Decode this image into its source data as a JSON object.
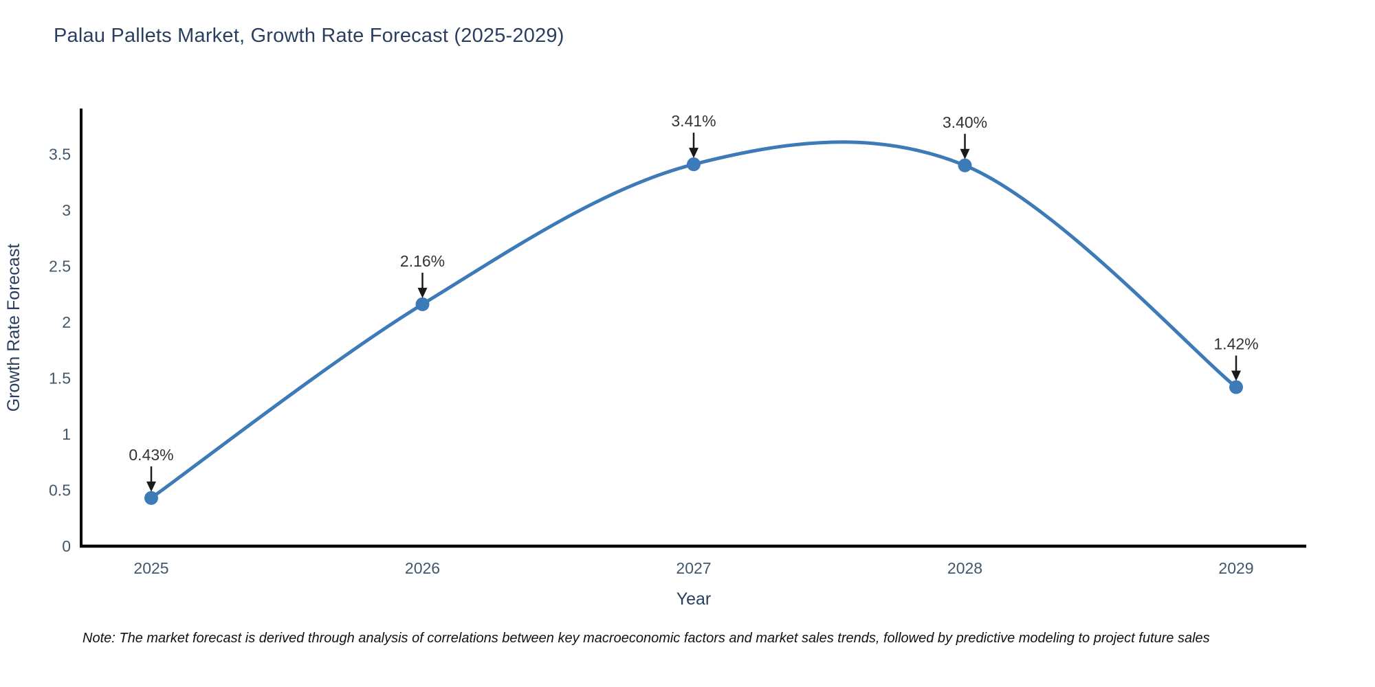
{
  "chart_data": {
    "type": "line",
    "title": "Palau Pallets Market, Growth Rate Forecast (2025-2029)",
    "categories": [
      "2025",
      "2026",
      "2027",
      "2028",
      "2029"
    ],
    "values": [
      0.43,
      2.16,
      3.41,
      3.4,
      1.42
    ],
    "point_labels": [
      "0.43%",
      "2.16%",
      "3.41%",
      "3.40%",
      "1.42%"
    ],
    "xlabel": "Year",
    "ylabel": "Growth Rate Forecast",
    "ylim": [
      0,
      3.9
    ],
    "yticks": [
      "0",
      "0.5",
      "1",
      "1.5",
      "2",
      "2.5",
      "3",
      "3.5"
    ],
    "grid": false,
    "legend": "none",
    "smooth": true,
    "line_color": "#3d7ab8",
    "marker_color": "#3d7ab8",
    "axis_color": "#000000",
    "tick_label_color": "#42576b",
    "axis_title_color": "#2a3f5f",
    "annotation_text_color": "#333333",
    "annotation_arrow_color": "#1a1a1a"
  },
  "note": "Note: The market forecast is derived through analysis of correlations between key macroeconomic factors and market sales trends, followed by predictive modeling to project future sales"
}
